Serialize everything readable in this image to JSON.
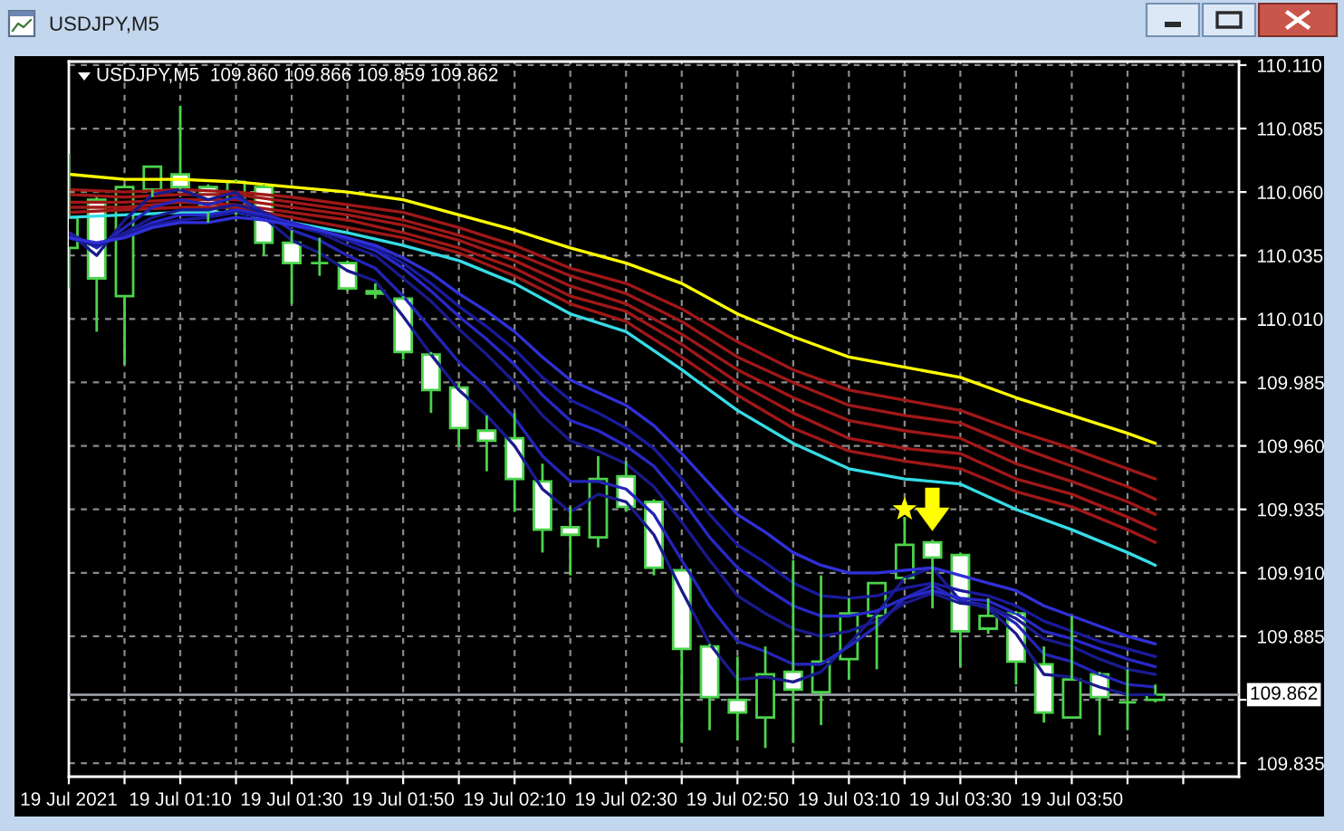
{
  "chart_data": {
    "type": "candlestick",
    "title": "USDJPY,M5",
    "subtitle": "USDJPY,M5  109.860 109.866 109.859 109.862",
    "color": "#4cd34c",
    "x": [
      "2021-07-19T00:50",
      "2021-07-19T00:55",
      "2021-07-19T01:00",
      "2021-07-19T01:05",
      "2021-07-19T01:10",
      "2021-07-19T01:15",
      "2021-07-19T01:20",
      "2021-07-19T01:25",
      "2021-07-19T01:30",
      "2021-07-19T01:35",
      "2021-07-19T01:40",
      "2021-07-19T01:45",
      "2021-07-19T01:50",
      "2021-07-19T01:55",
      "2021-07-19T02:00",
      "2021-07-19T02:05",
      "2021-07-19T02:10",
      "2021-07-19T02:15",
      "2021-07-19T02:20",
      "2021-07-19T02:25",
      "2021-07-19T02:30",
      "2021-07-19T02:35",
      "2021-07-19T02:40",
      "2021-07-19T02:45",
      "2021-07-19T02:50",
      "2021-07-19T02:55",
      "2021-07-19T03:00",
      "2021-07-19T03:05",
      "2021-07-19T03:10",
      "2021-07-19T03:15",
      "2021-07-19T03:20",
      "2021-07-19T03:25",
      "2021-07-19T03:30",
      "2021-07-19T03:35",
      "2021-07-19T03:40",
      "2021-07-19T03:45",
      "2021-07-19T03:50",
      "2021-07-19T03:55",
      "2021-07-19T04:00",
      "2021-07-19T04:05"
    ],
    "ohlc": [
      [
        110.038,
        110.075,
        110.022,
        110.05
      ],
      [
        110.057,
        110.058,
        110.005,
        110.026
      ],
      [
        110.019,
        110.063,
        109.992,
        110.062
      ],
      [
        110.061,
        110.07,
        110.058,
        110.07
      ],
      [
        110.067,
        110.094,
        110.061,
        110.062
      ],
      [
        110.062,
        110.063,
        110.048,
        110.052
      ],
      [
        110.052,
        110.065,
        110.051,
        110.064
      ],
      [
        110.062,
        110.063,
        110.035,
        110.04
      ],
      [
        110.04,
        110.045,
        110.016,
        110.032
      ],
      [
        110.032,
        110.042,
        110.027,
        110.032
      ],
      [
        110.032,
        110.033,
        110.021,
        110.022
      ],
      [
        110.021,
        110.024,
        110.018,
        110.02
      ],
      [
        110.018,
        110.019,
        109.994,
        109.997
      ],
      [
        109.996,
        109.997,
        109.973,
        109.982
      ],
      [
        109.983,
        109.985,
        109.96,
        109.967
      ],
      [
        109.966,
        109.972,
        109.95,
        109.962
      ],
      [
        109.963,
        109.973,
        109.934,
        109.947
      ],
      [
        109.946,
        109.953,
        109.918,
        109.927
      ],
      [
        109.928,
        109.936,
        109.909,
        109.925
      ],
      [
        109.924,
        109.956,
        109.92,
        109.947
      ],
      [
        109.948,
        109.954,
        109.934,
        109.936
      ],
      [
        109.938,
        109.939,
        109.909,
        109.912
      ],
      [
        109.911,
        109.911,
        109.843,
        109.88
      ],
      [
        109.881,
        109.882,
        109.848,
        109.861
      ],
      [
        109.86,
        109.877,
        109.844,
        109.855
      ],
      [
        109.853,
        109.881,
        109.841,
        109.87
      ],
      [
        109.871,
        109.915,
        109.843,
        109.864
      ],
      [
        109.863,
        109.909,
        109.85,
        109.875
      ],
      [
        109.876,
        109.9,
        109.868,
        109.894
      ],
      [
        109.893,
        109.906,
        109.872,
        109.906
      ],
      [
        109.908,
        109.932,
        109.907,
        109.921
      ],
      [
        109.922,
        109.923,
        109.896,
        109.916
      ],
      [
        109.917,
        109.918,
        109.873,
        109.887
      ],
      [
        109.888,
        109.9,
        109.886,
        109.893
      ],
      [
        109.894,
        109.895,
        109.866,
        109.875
      ],
      [
        109.874,
        109.881,
        109.851,
        109.855
      ],
      [
        109.853,
        109.893,
        109.853,
        109.868
      ],
      [
        109.87,
        109.871,
        109.846,
        109.861
      ],
      [
        109.859,
        109.872,
        109.848,
        109.859
      ],
      [
        109.86,
        109.866,
        109.859,
        109.862
      ]
    ],
    "series": [
      {
        "type": "line",
        "color": "#ffff00",
        "x": [
          "2021-07-19T00:50",
          "2021-07-19T01:00",
          "2021-07-19T01:10",
          "2021-07-19T01:20",
          "2021-07-19T01:30",
          "2021-07-19T01:40",
          "2021-07-19T01:50",
          "2021-07-19T02:00",
          "2021-07-19T02:10",
          "2021-07-19T02:20",
          "2021-07-19T02:30",
          "2021-07-19T02:40",
          "2021-07-19T02:50",
          "2021-07-19T03:00",
          "2021-07-19T03:10",
          "2021-07-19T03:20",
          "2021-07-19T03:30",
          "2021-07-19T03:40",
          "2021-07-19T03:50",
          "2021-07-19T04:00",
          "2021-07-19T04:05"
        ],
        "values": [
          110.067,
          110.065,
          110.065,
          110.064,
          110.062,
          110.06,
          110.057,
          110.051,
          110.045,
          110.038,
          110.032,
          110.024,
          110.012,
          110.003,
          109.995,
          109.991,
          109.987,
          109.979,
          109.972,
          109.965,
          109.961
        ]
      },
      {
        "type": "line",
        "color": "#a01818",
        "x": [
          "2021-07-19T00:50",
          "2021-07-19T01:00",
          "2021-07-19T01:10",
          "2021-07-19T01:20",
          "2021-07-19T01:30",
          "2021-07-19T01:40",
          "2021-07-19T01:50",
          "2021-07-19T02:00",
          "2021-07-19T02:10",
          "2021-07-19T02:20",
          "2021-07-19T02:30",
          "2021-07-19T02:40",
          "2021-07-19T02:50",
          "2021-07-19T03:00",
          "2021-07-19T03:10",
          "2021-07-19T03:20",
          "2021-07-19T03:30",
          "2021-07-19T03:40",
          "2021-07-19T03:50",
          "2021-07-19T04:00",
          "2021-07-19T04:05"
        ],
        "values": [
          110.061,
          110.06,
          110.061,
          110.06,
          110.058,
          110.055,
          110.052,
          110.046,
          110.039,
          110.03,
          110.024,
          110.014,
          110.001,
          109.99,
          109.982,
          109.978,
          109.974,
          109.966,
          109.959,
          109.951,
          109.947
        ]
      },
      {
        "type": "line",
        "color": "#a01818",
        "x": [
          "2021-07-19T00:50",
          "2021-07-19T01:00",
          "2021-07-19T01:10",
          "2021-07-19T01:20",
          "2021-07-19T01:30",
          "2021-07-19T01:40",
          "2021-07-19T01:50",
          "2021-07-19T02:00",
          "2021-07-19T02:10",
          "2021-07-19T02:20",
          "2021-07-19T02:30",
          "2021-07-19T02:40",
          "2021-07-19T02:50",
          "2021-07-19T03:00",
          "2021-07-19T03:10",
          "2021-07-19T03:20",
          "2021-07-19T03:30",
          "2021-07-19T03:40",
          "2021-07-19T03:50",
          "2021-07-19T04:00",
          "2021-07-19T04:05"
        ],
        "values": [
          110.059,
          110.058,
          110.059,
          110.059,
          110.056,
          110.053,
          110.049,
          110.043,
          110.036,
          110.027,
          110.02,
          110.009,
          109.995,
          109.985,
          109.976,
          109.972,
          109.969,
          109.96,
          109.952,
          109.944,
          109.939
        ]
      },
      {
        "type": "line",
        "color": "#a01818",
        "x": [
          "2021-07-19T00:50",
          "2021-07-19T01:00",
          "2021-07-19T01:10",
          "2021-07-19T01:20",
          "2021-07-19T01:30",
          "2021-07-19T01:40",
          "2021-07-19T01:50",
          "2021-07-19T02:00",
          "2021-07-19T02:10",
          "2021-07-19T02:20",
          "2021-07-19T02:30",
          "2021-07-19T02:40",
          "2021-07-19T02:50",
          "2021-07-19T03:00",
          "2021-07-19T03:10",
          "2021-07-19T03:20",
          "2021-07-19T03:30",
          "2021-07-19T03:40",
          "2021-07-19T03:50",
          "2021-07-19T04:00",
          "2021-07-19T04:05"
        ],
        "values": [
          110.056,
          110.056,
          110.057,
          110.057,
          110.054,
          110.051,
          110.047,
          110.041,
          110.033,
          110.023,
          110.016,
          110.004,
          109.99,
          109.979,
          109.97,
          109.966,
          109.963,
          109.953,
          109.946,
          109.938,
          109.933
        ]
      },
      {
        "type": "line",
        "color": "#a01818",
        "x": [
          "2021-07-19T00:50",
          "2021-07-19T01:00",
          "2021-07-19T01:10",
          "2021-07-19T01:20",
          "2021-07-19T01:30",
          "2021-07-19T01:40",
          "2021-07-19T01:50",
          "2021-07-19T02:00",
          "2021-07-19T02:10",
          "2021-07-19T02:20",
          "2021-07-19T02:30",
          "2021-07-19T02:40",
          "2021-07-19T02:50",
          "2021-07-19T03:00",
          "2021-07-19T03:10",
          "2021-07-19T03:20",
          "2021-07-19T03:30",
          "2021-07-19T03:40",
          "2021-07-19T03:50",
          "2021-07-19T04:00",
          "2021-07-19T04:05"
        ],
        "values": [
          110.054,
          110.054,
          110.056,
          110.055,
          110.052,
          110.049,
          110.044,
          110.038,
          110.03,
          110.019,
          110.013,
          110.0,
          109.985,
          109.973,
          109.963,
          109.959,
          109.957,
          109.947,
          109.941,
          109.932,
          109.927
        ]
      },
      {
        "type": "line",
        "color": "#a01818",
        "x": [
          "2021-07-19T00:50",
          "2021-07-19T01:00",
          "2021-07-19T01:10",
          "2021-07-19T01:20",
          "2021-07-19T01:30",
          "2021-07-19T01:40",
          "2021-07-19T01:50",
          "2021-07-19T02:00",
          "2021-07-19T02:10",
          "2021-07-19T02:20",
          "2021-07-19T02:30",
          "2021-07-19T02:40",
          "2021-07-19T02:50",
          "2021-07-19T03:00",
          "2021-07-19T03:10",
          "2021-07-19T03:20",
          "2021-07-19T03:30",
          "2021-07-19T03:40",
          "2021-07-19T03:50",
          "2021-07-19T04:00",
          "2021-07-19T04:05"
        ],
        "values": [
          110.052,
          110.053,
          110.054,
          110.054,
          110.05,
          110.046,
          110.042,
          110.036,
          110.027,
          110.016,
          110.009,
          109.995,
          109.98,
          109.967,
          109.958,
          109.954,
          109.951,
          109.942,
          109.936,
          109.927,
          109.922
        ]
      },
      {
        "type": "line",
        "color": "#36dce6",
        "x": [
          "2021-07-19T00:50",
          "2021-07-19T01:00",
          "2021-07-19T01:10",
          "2021-07-19T01:20",
          "2021-07-19T01:30",
          "2021-07-19T01:40",
          "2021-07-19T01:50",
          "2021-07-19T02:00",
          "2021-07-19T02:10",
          "2021-07-19T02:20",
          "2021-07-19T02:30",
          "2021-07-19T02:40",
          "2021-07-19T02:50",
          "2021-07-19T03:00",
          "2021-07-19T03:10",
          "2021-07-19T03:20",
          "2021-07-19T03:30",
          "2021-07-19T03:40",
          "2021-07-19T03:50",
          "2021-07-19T04:00",
          "2021-07-19T04:05"
        ],
        "values": [
          110.05,
          110.051,
          110.052,
          110.052,
          110.048,
          110.044,
          110.039,
          110.033,
          110.024,
          110.012,
          110.005,
          109.99,
          109.974,
          109.961,
          109.951,
          109.947,
          109.945,
          109.935,
          109.927,
          109.918,
          109.913
        ]
      },
      {
        "type": "line",
        "color": "#1a1a8c",
        "values": [
          110.044,
          110.035,
          110.049,
          110.059,
          110.061,
          110.057,
          110.06,
          110.05,
          110.041,
          110.036,
          110.029,
          110.025,
          110.011,
          109.996,
          109.982,
          109.972,
          109.96,
          109.943,
          109.934,
          109.941,
          109.938,
          109.925,
          109.903,
          109.882,
          109.868,
          109.869,
          109.867,
          109.871,
          109.882,
          109.894,
          109.908,
          109.912,
          109.899,
          109.896,
          109.886,
          109.87,
          109.869,
          109.865,
          109.862,
          109.862
        ]
      },
      {
        "type": "line",
        "color": "#2424b8",
        "values": [
          110.044,
          110.038,
          110.046,
          110.054,
          110.057,
          110.055,
          110.058,
          110.052,
          110.045,
          110.041,
          110.035,
          110.03,
          110.019,
          110.006,
          109.993,
          109.983,
          109.971,
          109.956,
          109.946,
          109.946,
          109.943,
          109.933,
          109.915,
          109.897,
          109.883,
          109.879,
          109.874,
          109.874,
          109.881,
          109.889,
          109.9,
          109.905,
          109.899,
          109.897,
          109.89,
          109.878,
          109.875,
          109.87,
          109.866,
          109.865
        ]
      },
      {
        "type": "line",
        "color": "#1a1a8c",
        "values": [
          110.043,
          110.039,
          110.044,
          110.05,
          110.053,
          110.053,
          110.055,
          110.052,
          110.047,
          110.044,
          110.039,
          110.035,
          110.026,
          110.017,
          110.006,
          109.996,
          109.985,
          109.972,
          109.962,
          109.958,
          109.953,
          109.944,
          109.93,
          109.915,
          109.901,
          109.894,
          109.888,
          109.885,
          109.887,
          109.891,
          109.898,
          109.902,
          109.898,
          109.897,
          109.892,
          109.884,
          109.881,
          109.876,
          109.872,
          109.87
        ]
      },
      {
        "type": "line",
        "color": "#2828c8",
        "values": [
          110.042,
          110.039,
          110.043,
          110.048,
          110.051,
          110.051,
          110.053,
          110.051,
          110.048,
          110.045,
          110.041,
          110.037,
          110.03,
          110.021,
          110.011,
          110.002,
          109.992,
          109.98,
          109.97,
          109.966,
          109.96,
          109.952,
          109.939,
          109.924,
          109.912,
          109.904,
          109.897,
          109.893,
          109.893,
          109.895,
          109.9,
          109.903,
          109.9,
          109.899,
          109.894,
          109.887,
          109.884,
          109.88,
          109.876,
          109.873
        ]
      },
      {
        "type": "line",
        "color": "#1a1a9c",
        "values": [
          110.042,
          110.039,
          110.043,
          110.047,
          110.049,
          110.05,
          110.052,
          110.05,
          110.047,
          110.045,
          110.041,
          110.038,
          110.032,
          110.024,
          110.015,
          110.007,
          109.998,
          109.987,
          109.978,
          109.973,
          109.967,
          109.959,
          109.947,
          109.933,
          109.921,
          109.914,
          109.906,
          109.901,
          109.9,
          109.901,
          109.904,
          109.906,
          109.903,
          109.901,
          109.897,
          109.891,
          109.887,
          109.883,
          109.88,
          109.877
        ]
      },
      {
        "type": "line",
        "color": "#3030d8",
        "values": [
          110.042,
          110.04,
          110.042,
          110.046,
          110.048,
          110.048,
          110.05,
          110.049,
          110.047,
          110.045,
          110.042,
          110.039,
          110.034,
          110.028,
          110.02,
          110.013,
          110.005,
          109.995,
          109.986,
          109.981,
          109.976,
          109.968,
          109.957,
          109.945,
          109.933,
          109.926,
          109.918,
          109.913,
          109.91,
          109.91,
          109.911,
          109.912,
          109.909,
          109.906,
          109.903,
          109.897,
          109.893,
          109.889,
          109.885,
          109.882
        ]
      }
    ],
    "xlim": [
      "2021-07-19T00:50",
      "2021-07-19T04:20"
    ],
    "ylim": [
      109.8297,
      110.1114
    ],
    "xticks": [
      {
        "value": "2021-07-19T00:50",
        "label": "19 Jul 2021"
      },
      {
        "value": "2021-07-19T01:00",
        "label": null
      },
      {
        "value": "2021-07-19T01:10",
        "label": "19 Jul 01:10"
      },
      {
        "value": "2021-07-19T01:20",
        "label": null
      },
      {
        "value": "2021-07-19T01:30",
        "label": "19 Jul 01:30"
      },
      {
        "value": "2021-07-19T01:40",
        "label": null
      },
      {
        "value": "2021-07-19T01:50",
        "label": "19 Jul 01:50"
      },
      {
        "value": "2021-07-19T02:00",
        "label": null
      },
      {
        "value": "2021-07-19T02:10",
        "label": "19 Jul 02:10"
      },
      {
        "value": "2021-07-19T02:20",
        "label": null
      },
      {
        "value": "2021-07-19T02:30",
        "label": "19 Jul 02:30"
      },
      {
        "value": "2021-07-19T02:40",
        "label": null
      },
      {
        "value": "2021-07-19T02:50",
        "label": "19 Jul 02:50"
      },
      {
        "value": "2021-07-19T03:00",
        "label": null
      },
      {
        "value": "2021-07-19T03:10",
        "label": "19 Jul 03:10"
      },
      {
        "value": "2021-07-19T03:20",
        "label": null
      },
      {
        "value": "2021-07-19T03:30",
        "label": "19 Jul 03:30"
      },
      {
        "value": "2021-07-19T03:40",
        "label": null
      },
      {
        "value": "2021-07-19T03:50",
        "label": "19 Jul 03:50"
      },
      {
        "value": "2021-07-19T04:00",
        "label": null
      },
      {
        "value": "2021-07-19T04:10",
        "label": null
      }
    ],
    "yticks": [
      109.835,
      {
        "value": 109.86,
        "label": null
      },
      109.885,
      {
        "value": 109.91,
        "label": "109.910"
      },
      109.935,
      {
        "value": 109.96,
        "label": "109.960"
      },
      109.985,
      {
        "value": 110.01,
        "label": "110.010"
      },
      110.035,
      {
        "value": 110.06,
        "label": "110.060"
      },
      110.085,
      {
        "value": 110.11,
        "label": "110.110"
      }
    ],
    "grid": true,
    "ref_lines": [
      {
        "axis": "y",
        "value": 109.862,
        "label": "109.862",
        "color": "#a4a8b0"
      }
    ]
  }
}
